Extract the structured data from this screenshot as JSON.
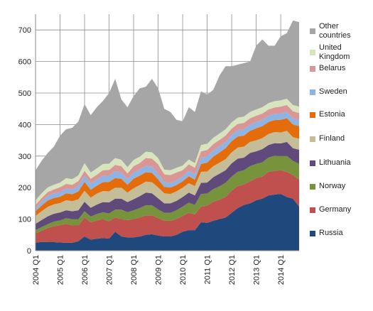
{
  "chart_data": {
    "type": "stacked-area",
    "categories": [
      "2004 Q1",
      null,
      null,
      null,
      "2005 Q1",
      null,
      null,
      null,
      "2006 Q1",
      null,
      null,
      null,
      "2007 Q1",
      null,
      null,
      null,
      "2008 Q1",
      null,
      null,
      null,
      "2009 Q1",
      null,
      null,
      null,
      "2010 Q1",
      null,
      null,
      null,
      "2011 Q1",
      null,
      null,
      null,
      "2012 Q1",
      null,
      null,
      null,
      "2013 Q1",
      null,
      null,
      null,
      "2014 Q1",
      null,
      null,
      null
    ],
    "ylim": [
      0,
      750
    ],
    "yticks": [
      0,
      100,
      200,
      300,
      400,
      500,
      600,
      700
    ],
    "grid": true,
    "series": [
      {
        "name": "Russia",
        "color": "#1f497d",
        "values": [
          25,
          28,
          27,
          27,
          26,
          25,
          25,
          30,
          45,
          35,
          38,
          40,
          38,
          60,
          45,
          42,
          42,
          45,
          50,
          52,
          48,
          45,
          45,
          50,
          60,
          65,
          65,
          90,
          88,
          95,
          100,
          105,
          120,
          135,
          145,
          150,
          160,
          165,
          175,
          178,
          180,
          170,
          165,
          140
        ]
      },
      {
        "name": "Germany",
        "color": "#c0504d",
        "values": [
          30,
          35,
          45,
          50,
          55,
          60,
          55,
          50,
          60,
          55,
          58,
          60,
          55,
          45,
          55,
          55,
          58,
          60,
          62,
          60,
          55,
          50,
          50,
          50,
          50,
          55,
          50,
          50,
          55,
          60,
          62,
          65,
          70,
          70,
          65,
          70,
          70,
          70,
          75,
          75,
          75,
          80,
          75,
          85
        ]
      },
      {
        "name": "Norway",
        "color": "#77933c",
        "values": [
          10,
          12,
          12,
          15,
          15,
          18,
          20,
          20,
          20,
          18,
          20,
          22,
          25,
          25,
          30,
          25,
          28,
          30,
          32,
          32,
          28,
          25,
          25,
          28,
          30,
          32,
          30,
          40,
          38,
          40,
          42,
          45,
          45,
          45,
          45,
          48,
          45,
          45,
          45,
          48,
          45,
          50,
          45,
          50
        ]
      },
      {
        "name": "Lithuania",
        "color": "#604a7b",
        "values": [
          20,
          22,
          25,
          25,
          25,
          25,
          25,
          28,
          30,
          28,
          30,
          32,
          35,
          35,
          35,
          32,
          35,
          38,
          40,
          38,
          35,
          30,
          30,
          30,
          30,
          32,
          30,
          35,
          35,
          38,
          40,
          40,
          42,
          42,
          40,
          42,
          40,
          42,
          40,
          40,
          40,
          45,
          40,
          45
        ]
      },
      {
        "name": "Finland",
        "color": "#c4bd97",
        "values": [
          25,
          28,
          30,
          30,
          30,
          32,
          32,
          35,
          35,
          32,
          35,
          35,
          35,
          35,
          35,
          30,
          35,
          35,
          35,
          35,
          35,
          32,
          30,
          30,
          30,
          30,
          30,
          35,
          35,
          35,
          35,
          35,
          35,
          35,
          35,
          35,
          35,
          35,
          35,
          35,
          35,
          35,
          35,
          35
        ]
      },
      {
        "name": "Estonia",
        "color": "#e46c0a",
        "values": [
          15,
          18,
          20,
          20,
          20,
          22,
          22,
          25,
          28,
          25,
          25,
          28,
          30,
          30,
          28,
          25,
          30,
          30,
          30,
          30,
          25,
          20,
          20,
          20,
          20,
          22,
          20,
          25,
          28,
          30,
          32,
          35,
          35,
          35,
          35,
          35,
          38,
          38,
          38,
          38,
          40,
          40,
          40,
          40
        ]
      },
      {
        "name": "Sweden",
        "color": "#8eb4e3",
        "values": [
          10,
          12,
          15,
          15,
          15,
          15,
          15,
          18,
          20,
          20,
          20,
          20,
          20,
          22,
          20,
          18,
          20,
          20,
          20,
          20,
          18,
          15,
          15,
          15,
          15,
          18,
          18,
          20,
          20,
          20,
          20,
          20,
          20,
          20,
          20,
          20,
          20,
          20,
          20,
          20,
          20,
          20,
          20,
          20
        ]
      },
      {
        "name": "Belarus",
        "color": "#d99694",
        "values": [
          10,
          12,
          12,
          12,
          15,
          15,
          15,
          15,
          15,
          15,
          15,
          18,
          18,
          20,
          20,
          18,
          20,
          20,
          25,
          25,
          30,
          25,
          25,
          25,
          20,
          20,
          20,
          20,
          20,
          20,
          20,
          20,
          20,
          20,
          20,
          20,
          20,
          20,
          20,
          20,
          22,
          22,
          22,
          22
        ]
      },
      {
        "name": "United Kingdom",
        "color": "#d7e4bd",
        "values": [
          15,
          15,
          15,
          15,
          15,
          18,
          18,
          18,
          25,
          20,
          20,
          20,
          20,
          22,
          20,
          20,
          20,
          20,
          20,
          20,
          20,
          15,
          15,
          15,
          15,
          15,
          15,
          20,
          20,
          20,
          20,
          20,
          20,
          20,
          20,
          20,
          20,
          20,
          20,
          20,
          20,
          20,
          20,
          20
        ]
      },
      {
        "name": "Other countries",
        "color": "#a6a6a6",
        "values": [
          95,
          103,
          109,
          121,
          149,
          155,
          163,
          171,
          187,
          182,
          194,
          200,
          224,
          251,
          192,
          190,
          202,
          217,
          206,
          233,
          221,
          193,
          185,
          152,
          140,
          166,
          162,
          170,
          156,
          152,
          184,
          200,
          178,
          168,
          170,
          160,
          202,
          215,
          182,
          176,
          203,
          208,
          268,
          268
        ]
      }
    ]
  }
}
